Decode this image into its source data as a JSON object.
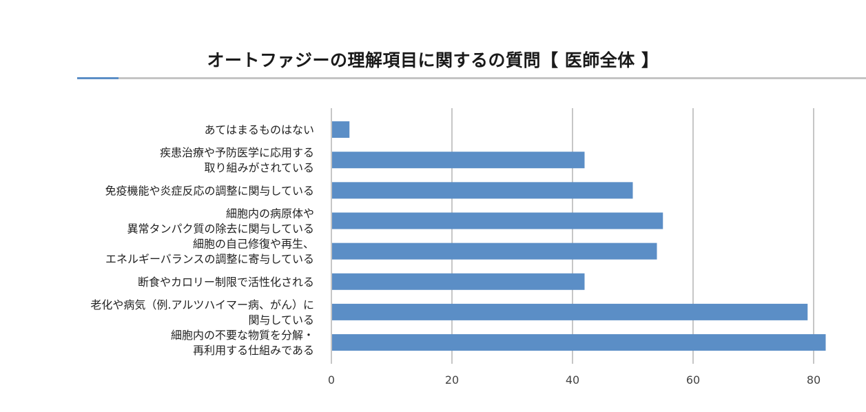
{
  "chart_data": {
    "type": "bar",
    "orientation": "horizontal",
    "title": "オートファジーの理解項目に関するの質問【 医師全体 】",
    "categories": [
      [
        "あてはまるものはない"
      ],
      [
        "疾患治療や予防医学に応用する",
        "取り組みがされている"
      ],
      [
        "免疫機能や炎症反応の調整に関与している"
      ],
      [
        "細胞内の病原体や",
        "異常タンパク質の除去に関与している"
      ],
      [
        "細胞の自己修復や再生、",
        "エネルギーバランスの調整に寄与している"
      ],
      [
        "断食やカロリー制限で活性化される"
      ],
      [
        "老化や病気（例.アルツハイマー病、がん）に",
        "関与している"
      ],
      [
        "細胞内の不要な物質を分解・",
        "再利用する仕組みである"
      ]
    ],
    "values": [
      3,
      42,
      50,
      55,
      54,
      42,
      79,
      82
    ],
    "xlim": [
      0,
      82
    ],
    "xticks": [
      0,
      20,
      40,
      60,
      80
    ],
    "grid": true,
    "xlabel": "",
    "ylabel": "",
    "colors": {
      "bar": "#5b8ec6",
      "grid": "#8c8c8c",
      "axis": "#8c8c8c"
    }
  }
}
